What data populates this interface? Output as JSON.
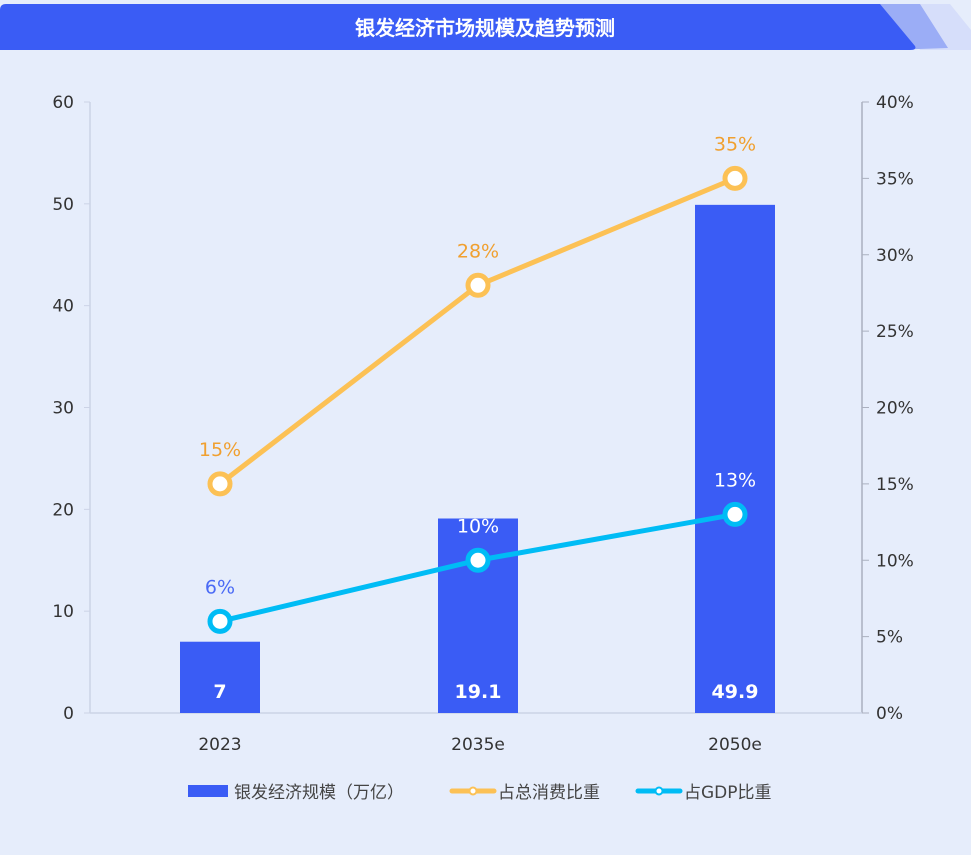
{
  "chart_data": {
    "type": "bar+line",
    "title": "银发经济市场规模及趋势预测",
    "categories": [
      "2023",
      "2035e",
      "2050e"
    ],
    "y_left": {
      "range": [
        0,
        60
      ],
      "ticks": [
        0,
        10,
        20,
        30,
        40,
        50,
        60
      ]
    },
    "y_right": {
      "range": [
        0,
        40
      ],
      "ticks": [
        "0%",
        "5%",
        "10%",
        "15%",
        "20%",
        "25%",
        "30%",
        "35%",
        "40%"
      ]
    },
    "series": [
      {
        "name": "银发经济规模（万亿）",
        "type": "bar",
        "axis": "left",
        "values": [
          7,
          19.1,
          49.9
        ],
        "labels": [
          "7",
          "19.1",
          "49.9"
        ],
        "color": "#3a5cf5"
      },
      {
        "name": "占总消费比重",
        "type": "line",
        "axis": "right",
        "values": [
          15,
          28,
          35
        ],
        "labels": [
          "15%",
          "28%",
          "35%"
        ],
        "color": "#fcc155",
        "label_color": "#f0a030"
      },
      {
        "name": "占GDP比重",
        "type": "line",
        "axis": "right",
        "values": [
          6,
          10,
          13
        ],
        "labels": [
          "6%",
          "10%",
          "13%"
        ],
        "color": "#00bcf5",
        "label_color": "#4a6af5"
      }
    ],
    "legend": "bottom",
    "grid": false
  }
}
